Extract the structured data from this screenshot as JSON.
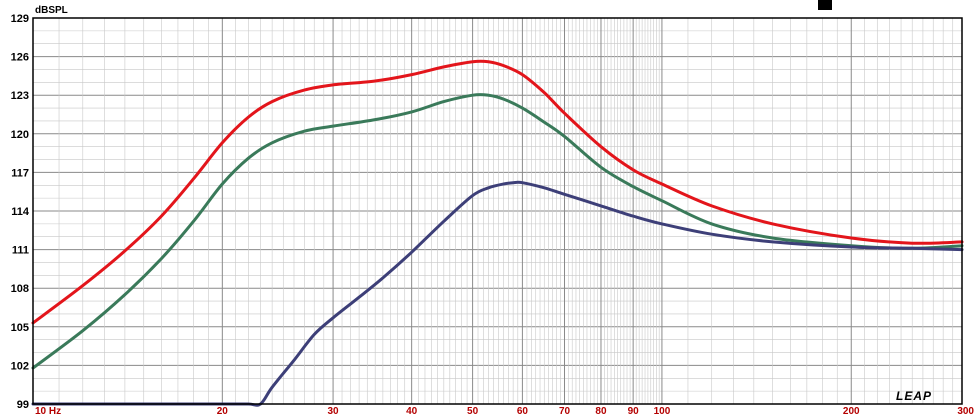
{
  "chart_data": {
    "type": "line",
    "title": "",
    "ylabel": "dBSPL",
    "xlabel": "",
    "xscale": "log",
    "xlim": [
      10,
      300
    ],
    "ylim": [
      99,
      129
    ],
    "yticks": [
      99,
      102,
      105,
      108,
      111,
      114,
      117,
      120,
      123,
      126,
      129
    ],
    "xticks": [
      {
        "value": 10,
        "label": "10  Hz"
      },
      {
        "value": 20,
        "label": "20"
      },
      {
        "value": 30,
        "label": "30"
      },
      {
        "value": 40,
        "label": "40"
      },
      {
        "value": 50,
        "label": "50"
      },
      {
        "value": 60,
        "label": "60"
      },
      {
        "value": 70,
        "label": "70"
      },
      {
        "value": 80,
        "label": "80"
      },
      {
        "value": 90,
        "label": "90"
      },
      {
        "value": 100,
        "label": "100"
      },
      {
        "value": 200,
        "label": "200"
      },
      {
        "value": 300,
        "label": "300"
      }
    ],
    "grid": true,
    "logo": "LEAP",
    "series": [
      {
        "color": "#e3151b",
        "points": [
          [
            10,
            105.3
          ],
          [
            12,
            108.2
          ],
          [
            14,
            110.9
          ],
          [
            16,
            113.6
          ],
          [
            18,
            116.5
          ],
          [
            20,
            119.3
          ],
          [
            22,
            121.3
          ],
          [
            24,
            122.5
          ],
          [
            27,
            123.4
          ],
          [
            30,
            123.8
          ],
          [
            35,
            124.1
          ],
          [
            40,
            124.6
          ],
          [
            45,
            125.2
          ],
          [
            50,
            125.6
          ],
          [
            53,
            125.6
          ],
          [
            56,
            125.3
          ],
          [
            60,
            124.6
          ],
          [
            65,
            123.2
          ],
          [
            70,
            121.6
          ],
          [
            80,
            119.0
          ],
          [
            90,
            117.2
          ],
          [
            100,
            116.1
          ],
          [
            120,
            114.4
          ],
          [
            150,
            113.0
          ],
          [
            200,
            111.9
          ],
          [
            250,
            111.5
          ],
          [
            300,
            111.6
          ]
        ]
      },
      {
        "color": "#3a7a5a",
        "points": [
          [
            10,
            101.8
          ],
          [
            12,
            104.7
          ],
          [
            14,
            107.5
          ],
          [
            16,
            110.3
          ],
          [
            18,
            113.2
          ],
          [
            20,
            116.1
          ],
          [
            22,
            118.1
          ],
          [
            24,
            119.3
          ],
          [
            27,
            120.2
          ],
          [
            30,
            120.6
          ],
          [
            35,
            121.1
          ],
          [
            40,
            121.7
          ],
          [
            45,
            122.5
          ],
          [
            50,
            123.0
          ],
          [
            53,
            123.0
          ],
          [
            56,
            122.7
          ],
          [
            60,
            122.0
          ],
          [
            65,
            120.9
          ],
          [
            70,
            119.8
          ],
          [
            80,
            117.4
          ],
          [
            90,
            115.9
          ],
          [
            100,
            114.8
          ],
          [
            120,
            113.0
          ],
          [
            150,
            111.9
          ],
          [
            200,
            111.3
          ],
          [
            250,
            111.1
          ],
          [
            300,
            111.3
          ]
        ]
      },
      {
        "color": "#3d3f78",
        "points": [
          [
            10,
            99.0
          ],
          [
            20,
            99.0
          ],
          [
            22,
            99.0
          ],
          [
            23,
            99.0
          ],
          [
            24,
            100.3
          ],
          [
            26,
            102.4
          ],
          [
            28,
            104.4
          ],
          [
            30,
            105.7
          ],
          [
            33,
            107.3
          ],
          [
            36,
            108.8
          ],
          [
            40,
            110.8
          ],
          [
            45,
            113.2
          ],
          [
            50,
            115.2
          ],
          [
            53,
            115.8
          ],
          [
            56,
            116.1
          ],
          [
            58,
            116.2
          ],
          [
            60,
            116.2
          ],
          [
            65,
            115.8
          ],
          [
            70,
            115.3
          ],
          [
            80,
            114.4
          ],
          [
            90,
            113.6
          ],
          [
            100,
            113.0
          ],
          [
            120,
            112.2
          ],
          [
            150,
            111.6
          ],
          [
            200,
            111.2
          ],
          [
            250,
            111.1
          ],
          [
            300,
            111.0
          ]
        ]
      }
    ]
  }
}
